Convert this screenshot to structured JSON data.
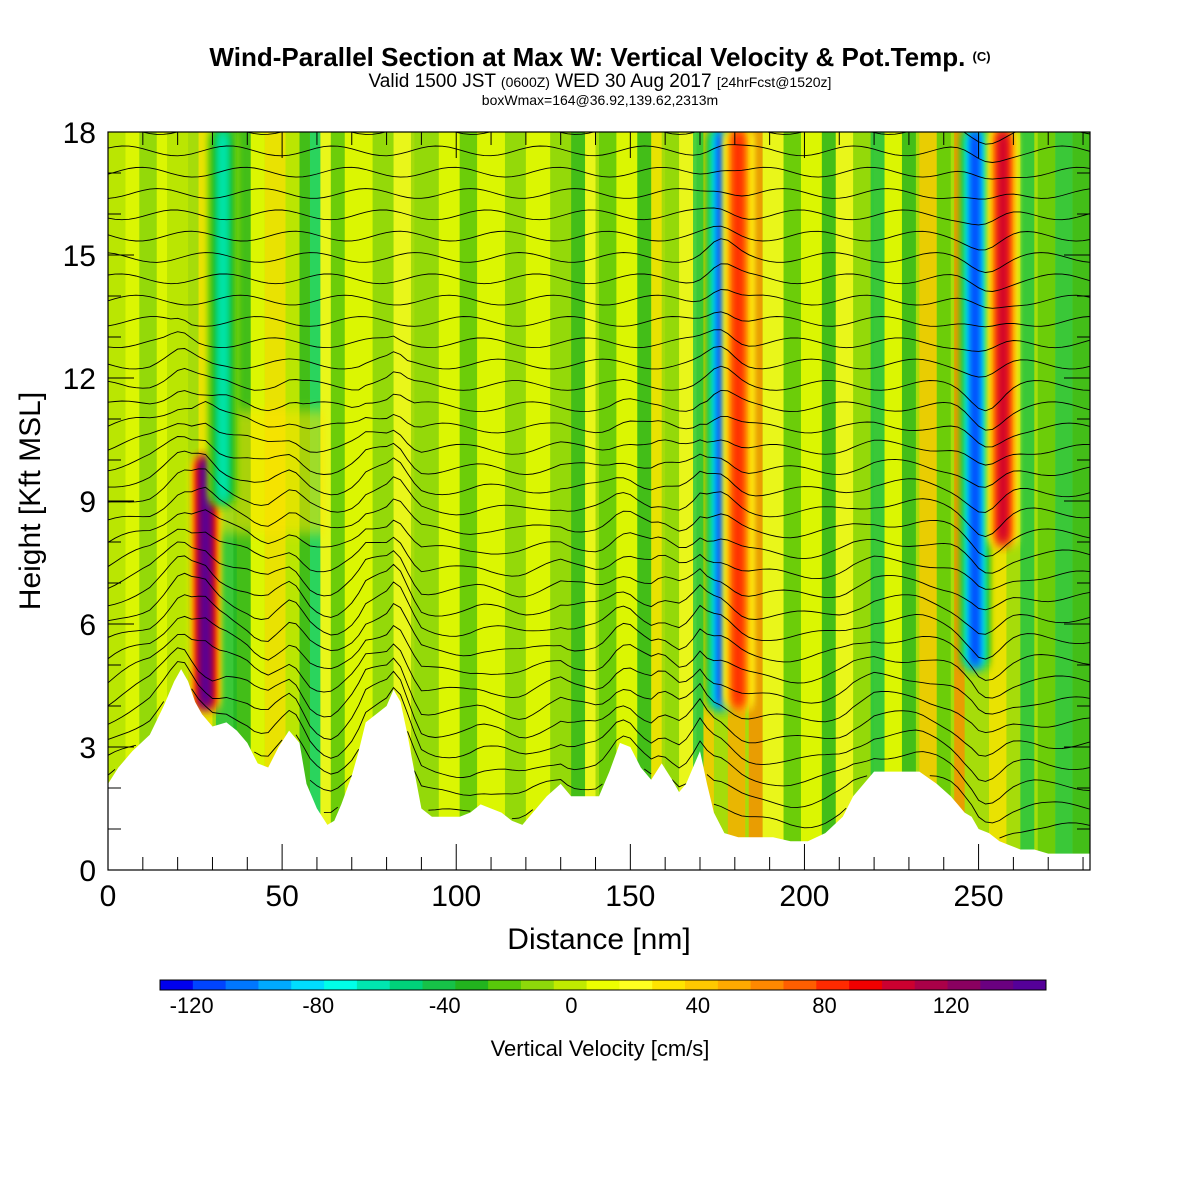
{
  "title": {
    "main": "Wind-Parallel Section at Max W: Vertical Velocity & Pot.Temp.",
    "copyright": "(C)",
    "valid_prefix": "Valid 1500 JST",
    "valid_utc": "(0600Z)",
    "valid_date": "WED 30 Aug 2017",
    "forecast": "[24hrFcst@1520z]",
    "box": "boxWmax=164@36.92,139.62,2313m"
  },
  "chart_data": {
    "type": "heatmap",
    "xlabel": "Distance [nm]",
    "ylabel": "Height [Kft MSL]",
    "xlim": [
      0,
      282
    ],
    "ylim": [
      0,
      18
    ],
    "x_ticks": [
      0,
      50,
      100,
      150,
      200,
      250
    ],
    "y_ticks": [
      0,
      3,
      6,
      9,
      12,
      15,
      18
    ],
    "colorbar": {
      "label": "Vertical Velocity [cm/s]",
      "ticks": [
        -120,
        -80,
        -40,
        0,
        40,
        80,
        120
      ],
      "range": [
        -130,
        150
      ],
      "colors": [
        "#0000ee",
        "#0044ff",
        "#0077ff",
        "#00aaff",
        "#00ddff",
        "#00ffe8",
        "#00e6b0",
        "#00d27a",
        "#16c248",
        "#22b41e",
        "#58c80a",
        "#8ed80a",
        "#c0ea00",
        "#ecff00",
        "#ffff20",
        "#ffe400",
        "#ffc800",
        "#ffaa00",
        "#ff8800",
        "#ff5e00",
        "#ff2a00",
        "#f00000",
        "#cc0030",
        "#aa0048",
        "#8a0060",
        "#6a0080",
        "#550099"
      ]
    },
    "w_features": [
      {
        "x": 28,
        "z_bottom": 4,
        "z_top": 10,
        "w": 150
      },
      {
        "x": 33,
        "z_bottom": 9,
        "z_top": 18,
        "w": -60
      },
      {
        "x": 176,
        "z_bottom": 4,
        "z_top": 18,
        "w": -110
      },
      {
        "x": 181,
        "z_bottom": 4,
        "z_top": 18,
        "w": 85
      },
      {
        "x": 249,
        "z_bottom": 5,
        "z_top": 18,
        "w": -115
      },
      {
        "x": 257,
        "z_bottom": 8,
        "z_top": 18,
        "w": 100
      }
    ],
    "terrain": [
      [
        0,
        2.1
      ],
      [
        3,
        2.5
      ],
      [
        7,
        2.9
      ],
      [
        12,
        3.3
      ],
      [
        16,
        4.0
      ],
      [
        19,
        4.6
      ],
      [
        21,
        4.9
      ],
      [
        23,
        4.6
      ],
      [
        25,
        4.1
      ],
      [
        27,
        3.8
      ],
      [
        30,
        3.5
      ],
      [
        34,
        3.6
      ],
      [
        37,
        3.4
      ],
      [
        40,
        3.1
      ],
      [
        43,
        2.6
      ],
      [
        46,
        2.5
      ],
      [
        49,
        3.0
      ],
      [
        52,
        3.4
      ],
      [
        55,
        3.1
      ],
      [
        57,
        2.1
      ],
      [
        60,
        1.5
      ],
      [
        63,
        1.1
      ],
      [
        65,
        1.2
      ],
      [
        67,
        1.6
      ],
      [
        70,
        2.3
      ],
      [
        72,
        2.9
      ],
      [
        74,
        3.6
      ],
      [
        77,
        3.8
      ],
      [
        80,
        4.0
      ],
      [
        82,
        4.4
      ],
      [
        84,
        4.1
      ],
      [
        86,
        3.3
      ],
      [
        88,
        2.4
      ],
      [
        90,
        1.5
      ],
      [
        93,
        1.3
      ],
      [
        97,
        1.3
      ],
      [
        101,
        1.3
      ],
      [
        104,
        1.4
      ],
      [
        107,
        1.6
      ],
      [
        110,
        1.5
      ],
      [
        113,
        1.4
      ],
      [
        116,
        1.2
      ],
      [
        119,
        1.1
      ],
      [
        122,
        1.4
      ],
      [
        126,
        1.8
      ],
      [
        130,
        2.1
      ],
      [
        133,
        1.8
      ],
      [
        137,
        1.8
      ],
      [
        141,
        1.8
      ],
      [
        144,
        2.4
      ],
      [
        147,
        3.1
      ],
      [
        150,
        3.0
      ],
      [
        153,
        2.5
      ],
      [
        156,
        2.2
      ],
      [
        159,
        2.6
      ],
      [
        162,
        2.2
      ],
      [
        164,
        1.9
      ],
      [
        166,
        2.1
      ],
      [
        168,
        2.5
      ],
      [
        170,
        2.9
      ],
      [
        172,
        2.1
      ],
      [
        174,
        1.4
      ],
      [
        177,
        0.9
      ],
      [
        181,
        0.8
      ],
      [
        186,
        0.8
      ],
      [
        191,
        0.8
      ],
      [
        196,
        0.7
      ],
      [
        201,
        0.7
      ],
      [
        206,
        0.9
      ],
      [
        211,
        1.3
      ],
      [
        214,
        1.8
      ],
      [
        217,
        2.1
      ],
      [
        220,
        2.4
      ],
      [
        224,
        2.4
      ],
      [
        228,
        2.4
      ],
      [
        233,
        2.4
      ],
      [
        238,
        2.1
      ],
      [
        242,
        1.8
      ],
      [
        244,
        1.6
      ],
      [
        246,
        1.4
      ],
      [
        248,
        1.3
      ],
      [
        250,
        1.0
      ],
      [
        253,
        0.9
      ],
      [
        256,
        0.7
      ],
      [
        259,
        0.6
      ],
      [
        262,
        0.5
      ],
      [
        266,
        0.5
      ],
      [
        270,
        0.4
      ],
      [
        275,
        0.4
      ],
      [
        282,
        0.4
      ]
    ]
  }
}
